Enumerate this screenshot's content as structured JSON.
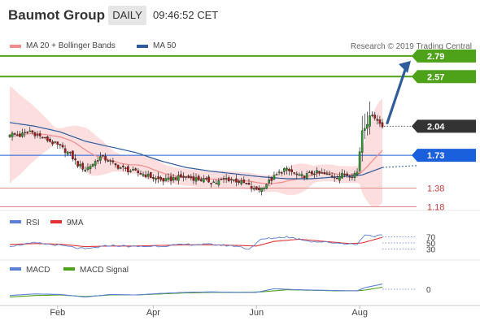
{
  "header": {
    "title": "Baumot Group",
    "timeframe": "DAILY",
    "time": "09:46:52 CET"
  },
  "legend": {
    "ma20_label": "MA 20 + Bollinger Bands",
    "ma50_label": "MA 50",
    "copyright": "Research © 2019 Trading Central"
  },
  "colors": {
    "ma20": "#f08c8c",
    "ma50": "#2b5b9e",
    "band": "#fcdede",
    "up": "#2e9e2e",
    "down": "#b01818",
    "target": "#4da21a",
    "pivot": "#1a5fdc",
    "support": "#e08a8a",
    "last": "#333333",
    "arrow": "#2f5c9a",
    "rsi": "#5b7fd6",
    "rsi_ma": "#e23030",
    "macd": "#5b7fd6",
    "macd_signal": "#4da21a"
  },
  "chart_data": {
    "type": "candlestick",
    "timeframe": "daily",
    "x_labels": [
      "Feb",
      "Apr",
      "Jun",
      "Aug"
    ],
    "ylim": [
      1.15,
      2.85
    ],
    "levels": [
      {
        "name": "target-2",
        "value": 2.79,
        "label": "2.79",
        "style": "resistance"
      },
      {
        "name": "target-1",
        "value": 2.57,
        "label": "2.57",
        "style": "resistance"
      },
      {
        "name": "last-price",
        "value": 2.04,
        "label": "2.04",
        "style": "last"
      },
      {
        "name": "pivot",
        "value": 1.73,
        "label": "1.73",
        "style": "pivot"
      },
      {
        "name": "support-1",
        "value": 1.38,
        "label": "1.38",
        "style": "support"
      },
      {
        "name": "support-2",
        "value": 1.18,
        "label": "1.18",
        "style": "support"
      }
    ],
    "arrow": {
      "from": 2.04,
      "to": 2.79,
      "direction": "up"
    },
    "price_path": [
      [
        0,
        1.96
      ],
      [
        4,
        1.94
      ],
      [
        8,
        1.99
      ],
      [
        12,
        1.93
      ],
      [
        16,
        1.88
      ],
      [
        20,
        1.82
      ],
      [
        24,
        1.74
      ],
      [
        27,
        1.63
      ],
      [
        30,
        1.58
      ],
      [
        33,
        1.64
      ],
      [
        36,
        1.71
      ],
      [
        39,
        1.68
      ],
      [
        42,
        1.62
      ],
      [
        46,
        1.58
      ],
      [
        50,
        1.55
      ],
      [
        54,
        1.52
      ],
      [
        58,
        1.48
      ],
      [
        62,
        1.46
      ],
      [
        66,
        1.49
      ],
      [
        70,
        1.5
      ],
      [
        74,
        1.48
      ],
      [
        78,
        1.46
      ],
      [
        82,
        1.44
      ],
      [
        86,
        1.48
      ],
      [
        90,
        1.46
      ],
      [
        94,
        1.42
      ],
      [
        97,
        1.36
      ],
      [
        100,
        1.38
      ],
      [
        103,
        1.45
      ],
      [
        106,
        1.52
      ],
      [
        109,
        1.58
      ],
      [
        112,
        1.55
      ],
      [
        115,
        1.5
      ],
      [
        118,
        1.52
      ],
      [
        121,
        1.55
      ],
      [
        124,
        1.53
      ],
      [
        127,
        1.52
      ],
      [
        130,
        1.5
      ],
      [
        133,
        1.53
      ],
      [
        136,
        1.52
      ],
      [
        138,
        1.55
      ],
      [
        140,
        2.0
      ],
      [
        142,
        2.08
      ],
      [
        144,
        2.18
      ],
      [
        146,
        2.1
      ],
      [
        148,
        2.04
      ]
    ],
    "ma50_path": [
      [
        0,
        2.08
      ],
      [
        10,
        2.04
      ],
      [
        20,
        1.98
      ],
      [
        30,
        1.88
      ],
      [
        40,
        1.82
      ],
      [
        50,
        1.76
      ],
      [
        60,
        1.67
      ],
      [
        70,
        1.6
      ],
      [
        80,
        1.56
      ],
      [
        90,
        1.53
      ],
      [
        100,
        1.5
      ],
      [
        110,
        1.48
      ],
      [
        120,
        1.48
      ],
      [
        130,
        1.5
      ],
      [
        140,
        1.52
      ],
      [
        148,
        1.6
      ]
    ],
    "rsi": {
      "label": "RSI",
      "ma_label": "9MA",
      "levels": [
        70,
        50,
        30
      ],
      "ylim": [
        0,
        100
      ],
      "values": [
        [
          0,
          40
        ],
        [
          10,
          50
        ],
        [
          20,
          42
        ],
        [
          30,
          30
        ],
        [
          40,
          42
        ],
        [
          50,
          38
        ],
        [
          60,
          40
        ],
        [
          70,
          45
        ],
        [
          80,
          45
        ],
        [
          90,
          40
        ],
        [
          95,
          30
        ],
        [
          100,
          62
        ],
        [
          110,
          70
        ],
        [
          120,
          55
        ],
        [
          130,
          50
        ],
        [
          138,
          45
        ],
        [
          141,
          78
        ],
        [
          144,
          72
        ],
        [
          148,
          74
        ]
      ],
      "ma_values": [
        [
          0,
          45
        ],
        [
          10,
          48
        ],
        [
          20,
          46
        ],
        [
          30,
          38
        ],
        [
          40,
          40
        ],
        [
          50,
          40
        ],
        [
          60,
          42
        ],
        [
          70,
          44
        ],
        [
          80,
          44
        ],
        [
          90,
          42
        ],
        [
          98,
          40
        ],
        [
          105,
          55
        ],
        [
          115,
          62
        ],
        [
          125,
          55
        ],
        [
          135,
          48
        ],
        [
          140,
          50
        ],
        [
          148,
          68
        ]
      ]
    },
    "macd": {
      "label": "MACD",
      "signal_label": "MACD Signal",
      "levels": [
        0
      ],
      "ylim": [
        -0.25,
        0.25
      ],
      "values": [
        [
          0,
          -0.12
        ],
        [
          10,
          -0.09
        ],
        [
          20,
          -0.1
        ],
        [
          30,
          -0.15
        ],
        [
          40,
          -0.1
        ],
        [
          50,
          -0.11
        ],
        [
          60,
          -0.08
        ],
        [
          70,
          -0.06
        ],
        [
          80,
          -0.05
        ],
        [
          90,
          -0.06
        ],
        [
          98,
          -0.06
        ],
        [
          105,
          0.01
        ],
        [
          115,
          -0.01
        ],
        [
          125,
          -0.02
        ],
        [
          135,
          -0.03
        ],
        [
          138,
          -0.03
        ],
        [
          141,
          0.03
        ],
        [
          144,
          0.06
        ],
        [
          148,
          0.1
        ]
      ],
      "signal_values": [
        [
          0,
          -0.15
        ],
        [
          10,
          -0.12
        ],
        [
          20,
          -0.11
        ],
        [
          30,
          -0.14
        ],
        [
          40,
          -0.11
        ],
        [
          50,
          -0.11
        ],
        [
          60,
          -0.09
        ],
        [
          70,
          -0.07
        ],
        [
          80,
          -0.06
        ],
        [
          90,
          -0.06
        ],
        [
          100,
          -0.05
        ],
        [
          110,
          -0.01
        ],
        [
          120,
          -0.02
        ],
        [
          130,
          -0.03
        ],
        [
          138,
          -0.03
        ],
        [
          142,
          -0.01
        ],
        [
          148,
          0.04
        ]
      ]
    }
  }
}
